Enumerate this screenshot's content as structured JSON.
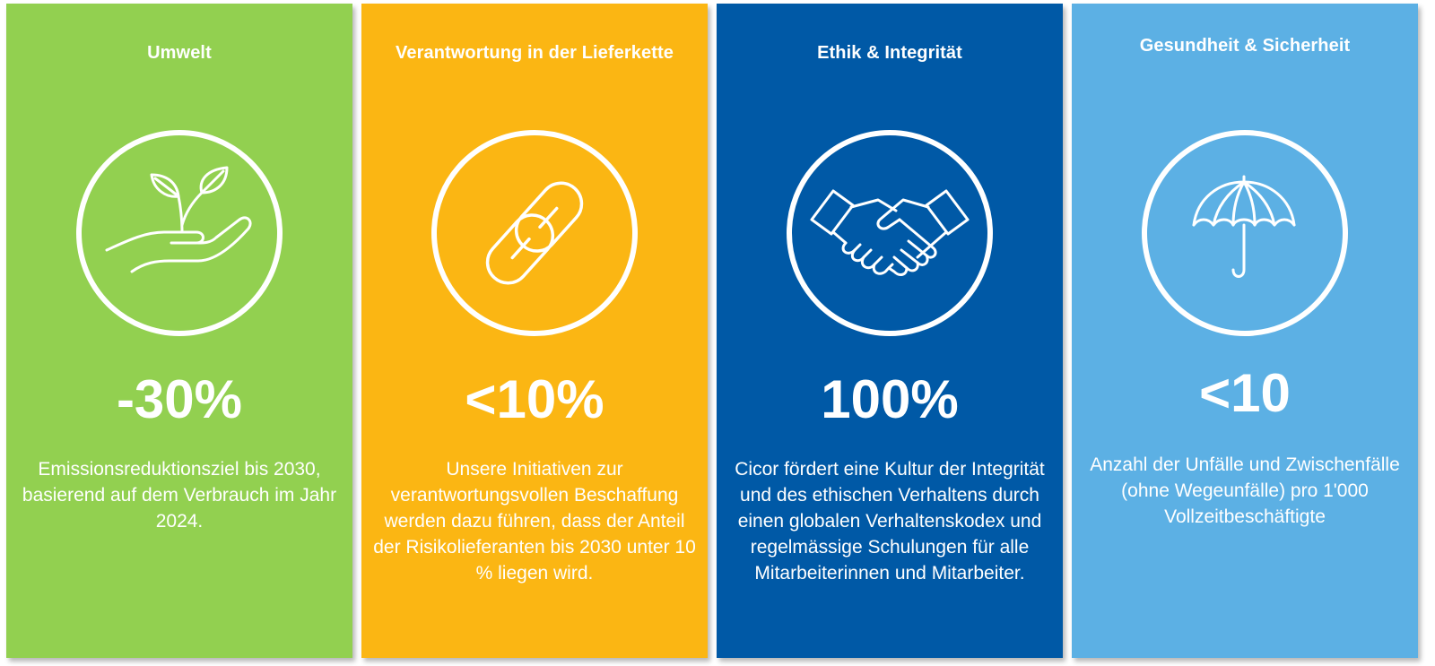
{
  "panels": [
    {
      "title": "Umwelt",
      "metric": "-30%",
      "description": "Emissionsreduktionsziel bis 2030, basierend auf dem Verbrauch im Jahr 2024.",
      "icon": "plant-in-hand-icon",
      "color": "#92d050"
    },
    {
      "title": "Verantwortung in der Lieferkette",
      "metric": "<10%",
      "description": "Unsere Initiativen zur verantwortungsvollen Beschaffung werden dazu führen, dass der Anteil der Risikolieferanten bis 2030 unter 10 % liegen wird.",
      "icon": "chain-link-icon",
      "color": "#fbb613"
    },
    {
      "title": "Ethik & Integrität",
      "metric": "100%",
      "description": "Cicor fördert eine Kultur der Integrität und des ethischen Verhaltens durch einen globalen Verhaltenskodex und regelmässige Schulungen für alle Mitarbeiterinnen und Mitarbeiter.",
      "icon": "handshake-icon",
      "color": "#0059a6"
    },
    {
      "title": "Gesundheit & Sicherheit",
      "metric": "<10",
      "description": "Anzahl der Unfälle und Zwischenfälle (ohne Wegeunfälle) pro 1'000 Vollzeitbeschäftigte",
      "icon": "umbrella-icon",
      "color": "#5cb0e4"
    }
  ]
}
